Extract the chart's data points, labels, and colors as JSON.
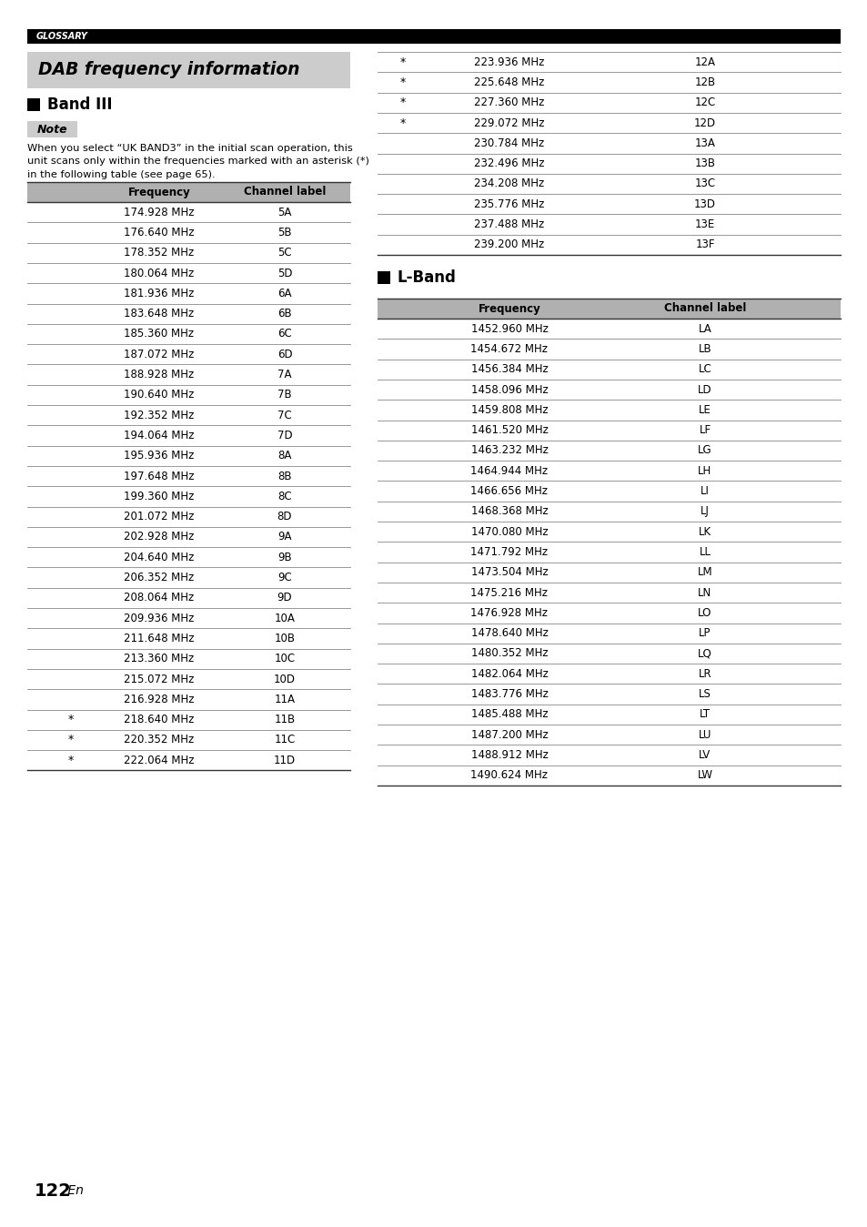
{
  "page_bg": "#ffffff",
  "glossary_text": "GLOSSARY",
  "title_text": "DAB frequency information",
  "section1_header": "Band III",
  "section2_header": "L-Band",
  "note_label": "Note",
  "note_text": "When you select “UK BAND3” in the initial scan operation, this\nunit scans only within the frequencies marked with an asterisk (*)\nin the following table (see page 65).",
  "band3_left": [
    [
      "",
      "174.928 MHz",
      "5A"
    ],
    [
      "",
      "176.640 MHz",
      "5B"
    ],
    [
      "",
      "178.352 MHz",
      "5C"
    ],
    [
      "",
      "180.064 MHz",
      "5D"
    ],
    [
      "",
      "181.936 MHz",
      "6A"
    ],
    [
      "",
      "183.648 MHz",
      "6B"
    ],
    [
      "",
      "185.360 MHz",
      "6C"
    ],
    [
      "",
      "187.072 MHz",
      "6D"
    ],
    [
      "",
      "188.928 MHz",
      "7A"
    ],
    [
      "",
      "190.640 MHz",
      "7B"
    ],
    [
      "",
      "192.352 MHz",
      "7C"
    ],
    [
      "",
      "194.064 MHz",
      "7D"
    ],
    [
      "",
      "195.936 MHz",
      "8A"
    ],
    [
      "",
      "197.648 MHz",
      "8B"
    ],
    [
      "",
      "199.360 MHz",
      "8C"
    ],
    [
      "",
      "201.072 MHz",
      "8D"
    ],
    [
      "",
      "202.928 MHz",
      "9A"
    ],
    [
      "",
      "204.640 MHz",
      "9B"
    ],
    [
      "",
      "206.352 MHz",
      "9C"
    ],
    [
      "",
      "208.064 MHz",
      "9D"
    ],
    [
      "",
      "209.936 MHz",
      "10A"
    ],
    [
      "",
      "211.648 MHz",
      "10B"
    ],
    [
      "",
      "213.360 MHz",
      "10C"
    ],
    [
      "",
      "215.072 MHz",
      "10D"
    ],
    [
      "",
      "216.928 MHz",
      "11A"
    ],
    [
      "*",
      "218.640 MHz",
      "11B"
    ],
    [
      "*",
      "220.352 MHz",
      "11C"
    ],
    [
      "*",
      "222.064 MHz",
      "11D"
    ]
  ],
  "band3_right": [
    [
      "*",
      "223.936 MHz",
      "12A"
    ],
    [
      "*",
      "225.648 MHz",
      "12B"
    ],
    [
      "*",
      "227.360 MHz",
      "12C"
    ],
    [
      "*",
      "229.072 MHz",
      "12D"
    ],
    [
      "",
      "230.784 MHz",
      "13A"
    ],
    [
      "",
      "232.496 MHz",
      "13B"
    ],
    [
      "",
      "234.208 MHz",
      "13C"
    ],
    [
      "",
      "235.776 MHz",
      "13D"
    ],
    [
      "",
      "237.488 MHz",
      "13E"
    ],
    [
      "",
      "239.200 MHz",
      "13F"
    ]
  ],
  "lband_data": [
    [
      "1452.960 MHz",
      "LA"
    ],
    [
      "1454.672 MHz",
      "LB"
    ],
    [
      "1456.384 MHz",
      "LC"
    ],
    [
      "1458.096 MHz",
      "LD"
    ],
    [
      "1459.808 MHz",
      "LE"
    ],
    [
      "1461.520 MHz",
      "LF"
    ],
    [
      "1463.232 MHz",
      "LG"
    ],
    [
      "1464.944 MHz",
      "LH"
    ],
    [
      "1466.656 MHz",
      "LI"
    ],
    [
      "1468.368 MHz",
      "LJ"
    ],
    [
      "1470.080 MHz",
      "LK"
    ],
    [
      "1471.792 MHz",
      "LL"
    ],
    [
      "1473.504 MHz",
      "LM"
    ],
    [
      "1475.216 MHz",
      "LN"
    ],
    [
      "1476.928 MHz",
      "LO"
    ],
    [
      "1478.640 MHz",
      "LP"
    ],
    [
      "1480.352 MHz",
      "LQ"
    ],
    [
      "1482.064 MHz",
      "LR"
    ],
    [
      "1483.776 MHz",
      "LS"
    ],
    [
      "1485.488 MHz",
      "LT"
    ],
    [
      "1487.200 MHz",
      "LU"
    ],
    [
      "1488.912 MHz",
      "LV"
    ],
    [
      "1490.624 MHz",
      "LW"
    ]
  ],
  "page_number": "122",
  "page_suffix": " En"
}
